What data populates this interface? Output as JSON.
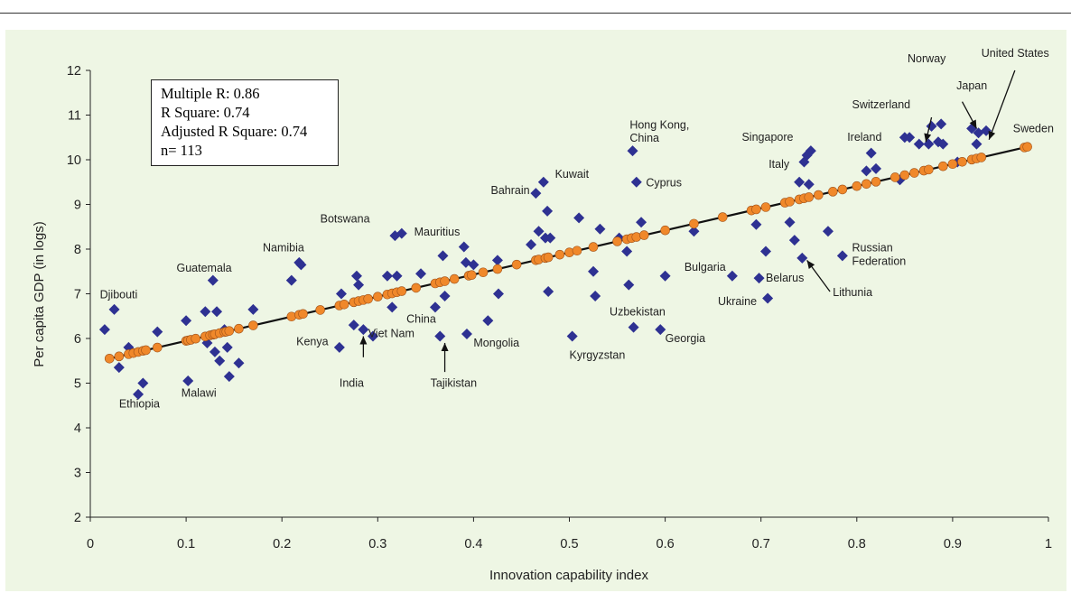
{
  "chart_data": {
    "type": "scatter",
    "xlabel": "Innovation capability index",
    "ylabel": "Per capita GDP (in logs)",
    "xlim": [
      0,
      1
    ],
    "ylim": [
      2,
      12
    ],
    "xticks": [
      0,
      0.1,
      0.2,
      0.3,
      0.4,
      0.5,
      0.6,
      0.7,
      0.8,
      0.9,
      1
    ],
    "xtick_labels": [
      "0",
      "0.1",
      "0.2",
      "0.3",
      "0.4",
      "0.5",
      "0.6",
      "0.7",
      "0.8",
      "0.9",
      "1"
    ],
    "yticks": [
      2,
      3,
      4,
      5,
      6,
      7,
      8,
      9,
      10,
      11,
      12
    ],
    "grid": false,
    "stats_box": [
      "Multiple R: 0.86",
      "R Square: 0.74",
      "Adjusted R Square: 0.74",
      "n= 113"
    ],
    "fit_line": {
      "x": [
        0.02,
        0.98
      ],
      "y": [
        5.55,
        10.3
      ]
    },
    "observed": {
      "marker": "diamond",
      "color": "#2e3192",
      "points": [
        [
          0.015,
          6.2
        ],
        [
          0.025,
          6.65
        ],
        [
          0.03,
          5.35
        ],
        [
          0.04,
          5.8
        ],
        [
          0.05,
          4.75
        ],
        [
          0.055,
          5.0
        ],
        [
          0.07,
          6.15
        ],
        [
          0.1,
          6.4
        ],
        [
          0.102,
          5.05
        ],
        [
          0.12,
          6.6
        ],
        [
          0.122,
          5.9
        ],
        [
          0.128,
          7.3
        ],
        [
          0.13,
          5.7
        ],
        [
          0.132,
          6.6
        ],
        [
          0.135,
          5.5
        ],
        [
          0.14,
          6.2
        ],
        [
          0.143,
          5.8
        ],
        [
          0.145,
          5.15
        ],
        [
          0.155,
          5.45
        ],
        [
          0.17,
          6.65
        ],
        [
          0.21,
          7.3
        ],
        [
          0.218,
          7.7
        ],
        [
          0.22,
          7.65
        ],
        [
          0.26,
          5.8
        ],
        [
          0.262,
          7.0
        ],
        [
          0.275,
          6.3
        ],
        [
          0.278,
          7.4
        ],
        [
          0.28,
          7.2
        ],
        [
          0.285,
          6.2
        ],
        [
          0.295,
          6.05
        ],
        [
          0.31,
          7.4
        ],
        [
          0.315,
          6.7
        ],
        [
          0.318,
          8.3
        ],
        [
          0.32,
          7.4
        ],
        [
          0.325,
          8.35
        ],
        [
          0.345,
          7.45
        ],
        [
          0.36,
          6.7
        ],
        [
          0.365,
          6.05
        ],
        [
          0.368,
          7.85
        ],
        [
          0.37,
          6.95
        ],
        [
          0.39,
          8.05
        ],
        [
          0.392,
          7.7
        ],
        [
          0.393,
          6.1
        ],
        [
          0.4,
          7.65
        ],
        [
          0.415,
          6.4
        ],
        [
          0.425,
          7.75
        ],
        [
          0.426,
          7.0
        ],
        [
          0.46,
          8.1
        ],
        [
          0.465,
          9.25
        ],
        [
          0.468,
          8.4
        ],
        [
          0.473,
          9.5
        ],
        [
          0.475,
          8.25
        ],
        [
          0.477,
          8.85
        ],
        [
          0.478,
          7.05
        ],
        [
          0.48,
          8.25
        ],
        [
          0.503,
          6.05
        ],
        [
          0.51,
          8.7
        ],
        [
          0.525,
          7.5
        ],
        [
          0.527,
          6.95
        ],
        [
          0.532,
          8.45
        ],
        [
          0.552,
          8.25
        ],
        [
          0.56,
          7.95
        ],
        [
          0.562,
          7.2
        ],
        [
          0.566,
          10.2
        ],
        [
          0.567,
          6.25
        ],
        [
          0.57,
          9.5
        ],
        [
          0.575,
          8.6
        ],
        [
          0.595,
          6.2
        ],
        [
          0.6,
          7.4
        ],
        [
          0.63,
          8.4
        ],
        [
          0.67,
          7.4
        ],
        [
          0.695,
          8.55
        ],
        [
          0.698,
          7.35
        ],
        [
          0.705,
          7.95
        ],
        [
          0.707,
          6.9
        ],
        [
          0.73,
          8.6
        ],
        [
          0.735,
          8.2
        ],
        [
          0.74,
          9.5
        ],
        [
          0.743,
          7.8
        ],
        [
          0.745,
          9.95
        ],
        [
          0.748,
          10.1
        ],
        [
          0.75,
          9.45
        ],
        [
          0.752,
          10.2
        ],
        [
          0.77,
          8.4
        ],
        [
          0.785,
          7.85
        ],
        [
          0.81,
          9.75
        ],
        [
          0.815,
          10.15
        ],
        [
          0.82,
          9.8
        ],
        [
          0.845,
          9.55
        ],
        [
          0.85,
          10.5
        ],
        [
          0.855,
          10.5
        ],
        [
          0.865,
          10.35
        ],
        [
          0.875,
          10.35
        ],
        [
          0.878,
          10.75
        ],
        [
          0.885,
          10.4
        ],
        [
          0.888,
          10.8
        ],
        [
          0.89,
          10.35
        ],
        [
          0.905,
          9.95
        ],
        [
          0.92,
          10.7
        ],
        [
          0.925,
          10.35
        ],
        [
          0.927,
          10.6
        ],
        [
          0.935,
          10.65
        ]
      ]
    },
    "fitted": {
      "marker": "circle",
      "color": "#f0882a",
      "x": [
        0.02,
        0.03,
        0.04,
        0.045,
        0.05,
        0.055,
        0.058,
        0.07,
        0.1,
        0.102,
        0.105,
        0.11,
        0.12,
        0.125,
        0.128,
        0.13,
        0.135,
        0.14,
        0.142,
        0.145,
        0.155,
        0.17,
        0.21,
        0.218,
        0.222,
        0.24,
        0.26,
        0.265,
        0.275,
        0.28,
        0.285,
        0.29,
        0.3,
        0.31,
        0.315,
        0.32,
        0.325,
        0.34,
        0.36,
        0.365,
        0.37,
        0.38,
        0.395,
        0.398,
        0.41,
        0.425,
        0.445,
        0.465,
        0.468,
        0.475,
        0.478,
        0.49,
        0.5,
        0.508,
        0.525,
        0.55,
        0.56,
        0.565,
        0.57,
        0.578,
        0.6,
        0.63,
        0.66,
        0.69,
        0.695,
        0.705,
        0.725,
        0.73,
        0.74,
        0.745,
        0.75,
        0.76,
        0.775,
        0.785,
        0.8,
        0.81,
        0.82,
        0.84,
        0.85,
        0.86,
        0.87,
        0.875,
        0.89,
        0.9,
        0.91,
        0.92,
        0.925,
        0.93,
        0.975,
        0.978
      ]
    },
    "labels": [
      {
        "text": "Djibouti",
        "x": 0.01,
        "y": 6.9,
        "anchor": "start"
      },
      {
        "text": "Ethiopia",
        "x": 0.03,
        "y": 4.45,
        "anchor": "start"
      },
      {
        "text": "Guatemala",
        "x": 0.09,
        "y": 7.5,
        "anchor": "start"
      },
      {
        "text": "Malawi",
        "x": 0.095,
        "y": 4.7,
        "anchor": "start"
      },
      {
        "text": "Namibia",
        "x": 0.18,
        "y": 7.95,
        "anchor": "start"
      },
      {
        "text": "Botswana",
        "x": 0.24,
        "y": 8.6,
        "anchor": "start"
      },
      {
        "text": "Mauritius",
        "x": 0.338,
        "y": 8.3,
        "anchor": "start"
      },
      {
        "text": "Kenya",
        "x": 0.215,
        "y": 5.85,
        "anchor": "start"
      },
      {
        "text": "India",
        "x": 0.26,
        "y": 4.92,
        "anchor": "start"
      },
      {
        "text": "Viet Nam",
        "x": 0.29,
        "y": 6.03,
        "anchor": "start"
      },
      {
        "text": "China",
        "x": 0.33,
        "y": 6.35,
        "anchor": "start"
      },
      {
        "text": "Tajikistan",
        "x": 0.355,
        "y": 4.92,
        "anchor": "start"
      },
      {
        "text": "Mongolia",
        "x": 0.4,
        "y": 5.82,
        "anchor": "start"
      },
      {
        "text": "Bahrain",
        "x": 0.418,
        "y": 9.23,
        "anchor": "start"
      },
      {
        "text": "Kuwait",
        "x": 0.485,
        "y": 9.6,
        "anchor": "start"
      },
      {
        "text": "Hong Kong,",
        "x": 0.563,
        "y": 10.7,
        "anchor": "start"
      },
      {
        "text": "China",
        "x": 0.563,
        "y": 10.4,
        "anchor": "start"
      },
      {
        "text": "Cyprus",
        "x": 0.58,
        "y": 9.4,
        "anchor": "start"
      },
      {
        "text": "Uzbekistan",
        "x": 0.542,
        "y": 6.52,
        "anchor": "start"
      },
      {
        "text": "Georgia",
        "x": 0.6,
        "y": 5.92,
        "anchor": "start"
      },
      {
        "text": "Kyrgyzstan",
        "x": 0.5,
        "y": 5.55,
        "anchor": "start"
      },
      {
        "text": "Bulgaria",
        "x": 0.62,
        "y": 7.52,
        "anchor": "start"
      },
      {
        "text": "Ukraine",
        "x": 0.655,
        "y": 6.75,
        "anchor": "start"
      },
      {
        "text": "Belarus",
        "x": 0.705,
        "y": 7.27,
        "anchor": "start"
      },
      {
        "text": "Lithunia",
        "x": 0.775,
        "y": 6.95,
        "anchor": "start"
      },
      {
        "text": "Russian",
        "x": 0.795,
        "y": 7.95,
        "anchor": "start"
      },
      {
        "text": "Federation",
        "x": 0.795,
        "y": 7.65,
        "anchor": "start"
      },
      {
        "text": "Singapore",
        "x": 0.68,
        "y": 10.42,
        "anchor": "start"
      },
      {
        "text": "Italy",
        "x": 0.708,
        "y": 9.82,
        "anchor": "start"
      },
      {
        "text": "Ireland",
        "x": 0.79,
        "y": 10.42,
        "anchor": "start"
      },
      {
        "text": "Switzerland",
        "x": 0.795,
        "y": 11.15,
        "anchor": "start"
      },
      {
        "text": "Norway",
        "x": 0.853,
        "y": 12.18,
        "anchor": "start"
      },
      {
        "text": "Japan",
        "x": 0.904,
        "y": 11.58,
        "anchor": "start"
      },
      {
        "text": "United States",
        "x": 0.93,
        "y": 12.3,
        "anchor": "start"
      },
      {
        "text": "Sweden",
        "x": 0.963,
        "y": 10.62,
        "anchor": "start"
      }
    ],
    "arrows": [
      {
        "from": [
          0.37,
          5.25
        ],
        "to": [
          0.37,
          5.9
        ]
      },
      {
        "from": [
          0.285,
          5.58
        ],
        "to": [
          0.285,
          6.05
        ]
      },
      {
        "from": [
          0.772,
          7.05
        ],
        "to": [
          0.748,
          7.75
        ]
      },
      {
        "from": [
          0.878,
          10.95
        ],
        "to": [
          0.872,
          10.4
        ]
      },
      {
        "from": [
          0.91,
          11.3
        ],
        "to": [
          0.925,
          10.7
        ]
      },
      {
        "from": [
          0.965,
          12.0
        ],
        "to": [
          0.938,
          10.45
        ]
      }
    ]
  }
}
